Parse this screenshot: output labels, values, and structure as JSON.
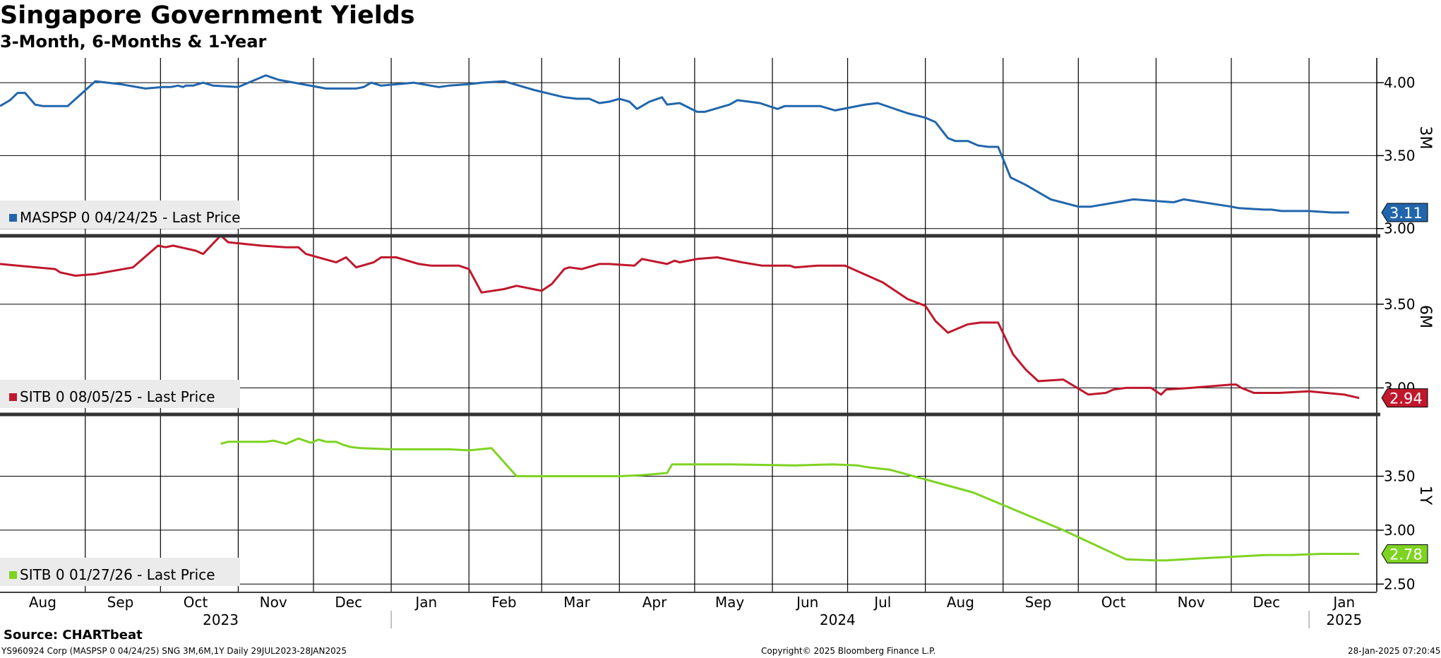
{
  "title": "Singapore Government Yields",
  "subtitle": "3-Month, 6-Months & 1-Year",
  "footer": {
    "source": "Source: CHARTbeat",
    "left": "YS960924 Corp (MASPSP 0 04/24/25) SNG 3M,6M,1Y  Daily 29JUL2023-28JAN2025",
    "center": "Copyright© 2025 Bloomberg Finance L.P.",
    "right": "28-Jan-2025 07:20:45"
  },
  "colors": {
    "blue": "#2166ac",
    "red": "#c0172c",
    "green": "#7ed321",
    "grid": "#000000",
    "legend_bg": "#ebebeb"
  },
  "chart_data": [
    {
      "type": "line",
      "name": "3M",
      "legend": "MASPSP 0 04/24/25 - Last Price",
      "last_value": "3.11",
      "color": "#2166ac",
      "ylim": [
        2.96,
        4.17
      ],
      "yticks": [
        "3.00",
        "3.50",
        "4.00"
      ],
      "x": [
        "2023-07-29",
        "2023-08-02",
        "2023-08-05",
        "2023-08-08",
        "2023-08-12",
        "2023-08-15",
        "2023-08-25",
        "2023-09-05",
        "2023-09-15",
        "2023-09-25",
        "2023-10-02",
        "2023-10-05",
        "2023-10-08",
        "2023-10-10",
        "2023-10-11",
        "2023-10-14",
        "2023-10-18",
        "2023-10-22",
        "2023-11-01",
        "2023-11-12",
        "2023-11-17",
        "2023-12-06",
        "2023-12-10",
        "2023-12-13",
        "2023-12-18",
        "2023-12-21",
        "2023-12-24",
        "2023-12-28",
        "2024-01-10",
        "2024-01-20",
        "2024-01-24",
        "2024-02-01",
        "2024-02-06",
        "2024-02-15",
        "2024-02-27",
        "2024-03-10",
        "2024-03-15",
        "2024-03-20",
        "2024-03-24",
        "2024-03-28",
        "2024-04-01",
        "2024-04-05",
        "2024-04-08",
        "2024-04-13",
        "2024-04-18",
        "2024-04-20",
        "2024-04-25",
        "2024-05-02",
        "2024-05-05",
        "2024-05-15",
        "2024-05-18",
        "2024-05-27",
        "2024-06-03",
        "2024-06-06",
        "2024-06-10",
        "2024-06-20",
        "2024-06-26",
        "2024-07-08",
        "2024-07-13",
        "2024-07-25",
        "2024-08-01",
        "2024-08-05",
        "2024-08-10",
        "2024-08-13",
        "2024-08-18",
        "2024-08-22",
        "2024-08-26",
        "2024-08-30",
        "2024-09-04",
        "2024-09-10",
        "2024-09-20",
        "2024-10-01",
        "2024-10-06",
        "2024-10-23",
        "2024-11-08",
        "2024-11-12",
        "2024-12-01",
        "2024-12-04",
        "2024-12-14",
        "2024-12-17",
        "2024-12-21",
        "2025-01-01",
        "2025-01-10",
        "2025-01-17"
      ],
      "values": [
        3.84,
        3.88,
        3.93,
        3.93,
        3.85,
        3.84,
        3.84,
        4.01,
        3.99,
        3.96,
        3.97,
        3.97,
        3.98,
        3.97,
        3.98,
        3.98,
        4.0,
        3.98,
        3.97,
        4.05,
        4.02,
        3.96,
        3.96,
        3.96,
        3.96,
        3.97,
        4.0,
        3.98,
        4.0,
        3.97,
        3.98,
        3.99,
        4.0,
        4.01,
        3.95,
        3.9,
        3.89,
        3.89,
        3.86,
        3.87,
        3.89,
        3.87,
        3.82,
        3.87,
        3.9,
        3.85,
        3.86,
        3.8,
        3.8,
        3.85,
        3.88,
        3.86,
        3.82,
        3.84,
        3.84,
        3.84,
        3.81,
        3.85,
        3.86,
        3.79,
        3.76,
        3.73,
        3.62,
        3.6,
        3.6,
        3.57,
        3.56,
        3.56,
        3.35,
        3.3,
        3.2,
        3.15,
        3.15,
        3.2,
        3.18,
        3.2,
        3.15,
        3.14,
        3.13,
        3.13,
        3.12,
        3.12,
        3.11,
        3.11
      ]
    },
    {
      "type": "line",
      "name": "6M",
      "legend": "SITB 0 08/05/25 - Last Price",
      "last_value": "2.94",
      "color": "#c0172c",
      "ylim": [
        2.85,
        3.9
      ],
      "yticks": [
        "3.00",
        "3.50"
      ],
      "x": [
        "2023-07-29",
        "2023-08-05",
        "2023-08-20",
        "2023-08-22",
        "2023-08-28",
        "2023-09-05",
        "2023-09-20",
        "2023-09-30",
        "2023-10-03",
        "2023-10-06",
        "2023-10-15",
        "2023-10-18",
        "2023-10-25",
        "2023-10-28",
        "2023-11-10",
        "2023-11-20",
        "2023-11-25",
        "2023-11-28",
        "2023-12-10",
        "2023-12-14",
        "2023-12-18",
        "2023-12-25",
        "2023-12-28",
        "2024-01-03",
        "2024-01-12",
        "2024-01-17",
        "2024-01-28",
        "2024-02-01",
        "2024-02-06",
        "2024-02-15",
        "2024-02-20",
        "2024-03-01",
        "2024-03-05",
        "2024-03-10",
        "2024-03-12",
        "2024-03-17",
        "2024-03-24",
        "2024-03-28",
        "2024-04-07",
        "2024-04-10",
        "2024-04-20",
        "2024-04-23",
        "2024-04-25",
        "2024-05-02",
        "2024-05-10",
        "2024-05-20",
        "2024-05-28",
        "2024-06-01",
        "2024-06-08",
        "2024-06-10",
        "2024-06-19",
        "2024-06-30",
        "2024-07-15",
        "2024-07-25",
        "2024-08-01",
        "2024-08-05",
        "2024-08-10",
        "2024-08-18",
        "2024-08-23",
        "2024-08-30",
        "2024-09-05",
        "2024-09-10",
        "2024-09-15",
        "2024-09-25",
        "2024-10-05",
        "2024-10-12",
        "2024-10-15",
        "2024-10-20",
        "2024-10-30",
        "2024-11-03",
        "2024-11-05",
        "2024-11-15",
        "2024-12-01",
        "2024-12-03",
        "2024-12-05",
        "2024-12-10",
        "2024-12-20",
        "2025-01-01",
        "2025-01-15",
        "2025-01-21"
      ],
      "values": [
        3.74,
        3.73,
        3.71,
        3.69,
        3.67,
        3.68,
        3.72,
        3.85,
        3.84,
        3.85,
        3.82,
        3.8,
        3.91,
        3.87,
        3.85,
        3.84,
        3.84,
        3.8,
        3.75,
        3.78,
        3.72,
        3.75,
        3.78,
        3.78,
        3.74,
        3.73,
        3.73,
        3.71,
        3.57,
        3.59,
        3.61,
        3.58,
        3.62,
        3.71,
        3.72,
        3.71,
        3.74,
        3.74,
        3.73,
        3.77,
        3.74,
        3.76,
        3.75,
        3.77,
        3.78,
        3.75,
        3.73,
        3.73,
        3.73,
        3.72,
        3.73,
        3.73,
        3.63,
        3.53,
        3.49,
        3.4,
        3.33,
        3.38,
        3.39,
        3.39,
        3.2,
        3.11,
        3.04,
        3.05,
        2.96,
        2.97,
        2.99,
        3.0,
        3.0,
        2.96,
        2.99,
        3.0,
        3.02,
        3.02,
        3.0,
        2.97,
        2.97,
        2.98,
        2.96,
        2.94
      ]
    },
    {
      "type": "line",
      "name": "1Y",
      "legend": "SITB 0 01/27/26 - Last Price",
      "last_value": "2.78",
      "color": "#7ed321",
      "ylim": [
        2.43,
        4.06
      ],
      "yticks": [
        "2.50",
        "3.00",
        "3.50"
      ],
      "x": [
        "2023-10-25",
        "2023-10-28",
        "2023-11-05",
        "2023-11-12",
        "2023-11-15",
        "2023-11-20",
        "2023-11-25",
        "2023-11-30",
        "2023-12-03",
        "2023-12-06",
        "2023-12-10",
        "2023-12-13",
        "2023-12-16",
        "2023-12-20",
        "2024-01-01",
        "2024-01-15",
        "2024-01-24",
        "2024-02-01",
        "2024-02-10",
        "2024-02-20",
        "2024-03-10",
        "2024-04-01",
        "2024-04-10",
        "2024-04-20",
        "2024-04-22",
        "2024-05-15",
        "2024-06-10",
        "2024-06-25",
        "2024-07-05",
        "2024-07-10",
        "2024-07-18",
        "2024-08-20",
        "2024-09-25",
        "2024-10-20",
        "2024-11-01",
        "2024-11-05",
        "2024-11-20",
        "2024-12-15",
        "2024-12-25",
        "2025-01-06",
        "2025-01-15",
        "2025-01-21"
      ],
      "values": [
        3.8,
        3.82,
        3.82,
        3.82,
        3.83,
        3.8,
        3.85,
        3.81,
        3.84,
        3.82,
        3.82,
        3.79,
        3.77,
        3.76,
        3.75,
        3.75,
        3.75,
        3.74,
        3.76,
        3.5,
        3.5,
        3.5,
        3.51,
        3.53,
        3.61,
        3.61,
        3.6,
        3.61,
        3.6,
        3.58,
        3.56,
        3.35,
        3.0,
        2.73,
        2.72,
        2.72,
        2.74,
        2.77,
        2.77,
        2.78,
        2.78,
        2.78
      ]
    }
  ],
  "x_axis": {
    "months": [
      "Aug",
      "Sep",
      "Oct",
      "Nov",
      "Dec",
      "Jan",
      "Feb",
      "Mar",
      "Apr",
      "May",
      "Jun",
      "Jul",
      "Aug",
      "Sep",
      "Oct",
      "Nov",
      "Dec",
      "Jan"
    ],
    "month_dates": [
      "2023-08-15",
      "2023-09-15",
      "2023-10-15",
      "2023-11-15",
      "2023-12-15",
      "2024-01-15",
      "2024-02-15",
      "2024-03-15",
      "2024-04-15",
      "2024-05-15",
      "2024-06-15",
      "2024-07-15",
      "2024-08-15",
      "2024-09-15",
      "2024-10-15",
      "2024-11-15",
      "2024-12-15",
      "2025-01-15"
    ],
    "gridlines": [
      "2023-09-01",
      "2023-10-01",
      "2023-11-01",
      "2023-12-01",
      "2024-01-01",
      "2024-02-01",
      "2024-03-01",
      "2024-04-01",
      "2024-05-01",
      "2024-06-01",
      "2024-07-01",
      "2024-08-01",
      "2024-09-01",
      "2024-10-01",
      "2024-11-01",
      "2024-12-01",
      "2025-01-01"
    ],
    "years": [
      {
        "label": "2023",
        "date": "2023-10-25"
      },
      {
        "label": "2024",
        "date": "2024-06-27"
      },
      {
        "label": "2025",
        "date": "2025-01-15"
      }
    ],
    "start": "2023-07-29",
    "end": "2025-01-28"
  }
}
